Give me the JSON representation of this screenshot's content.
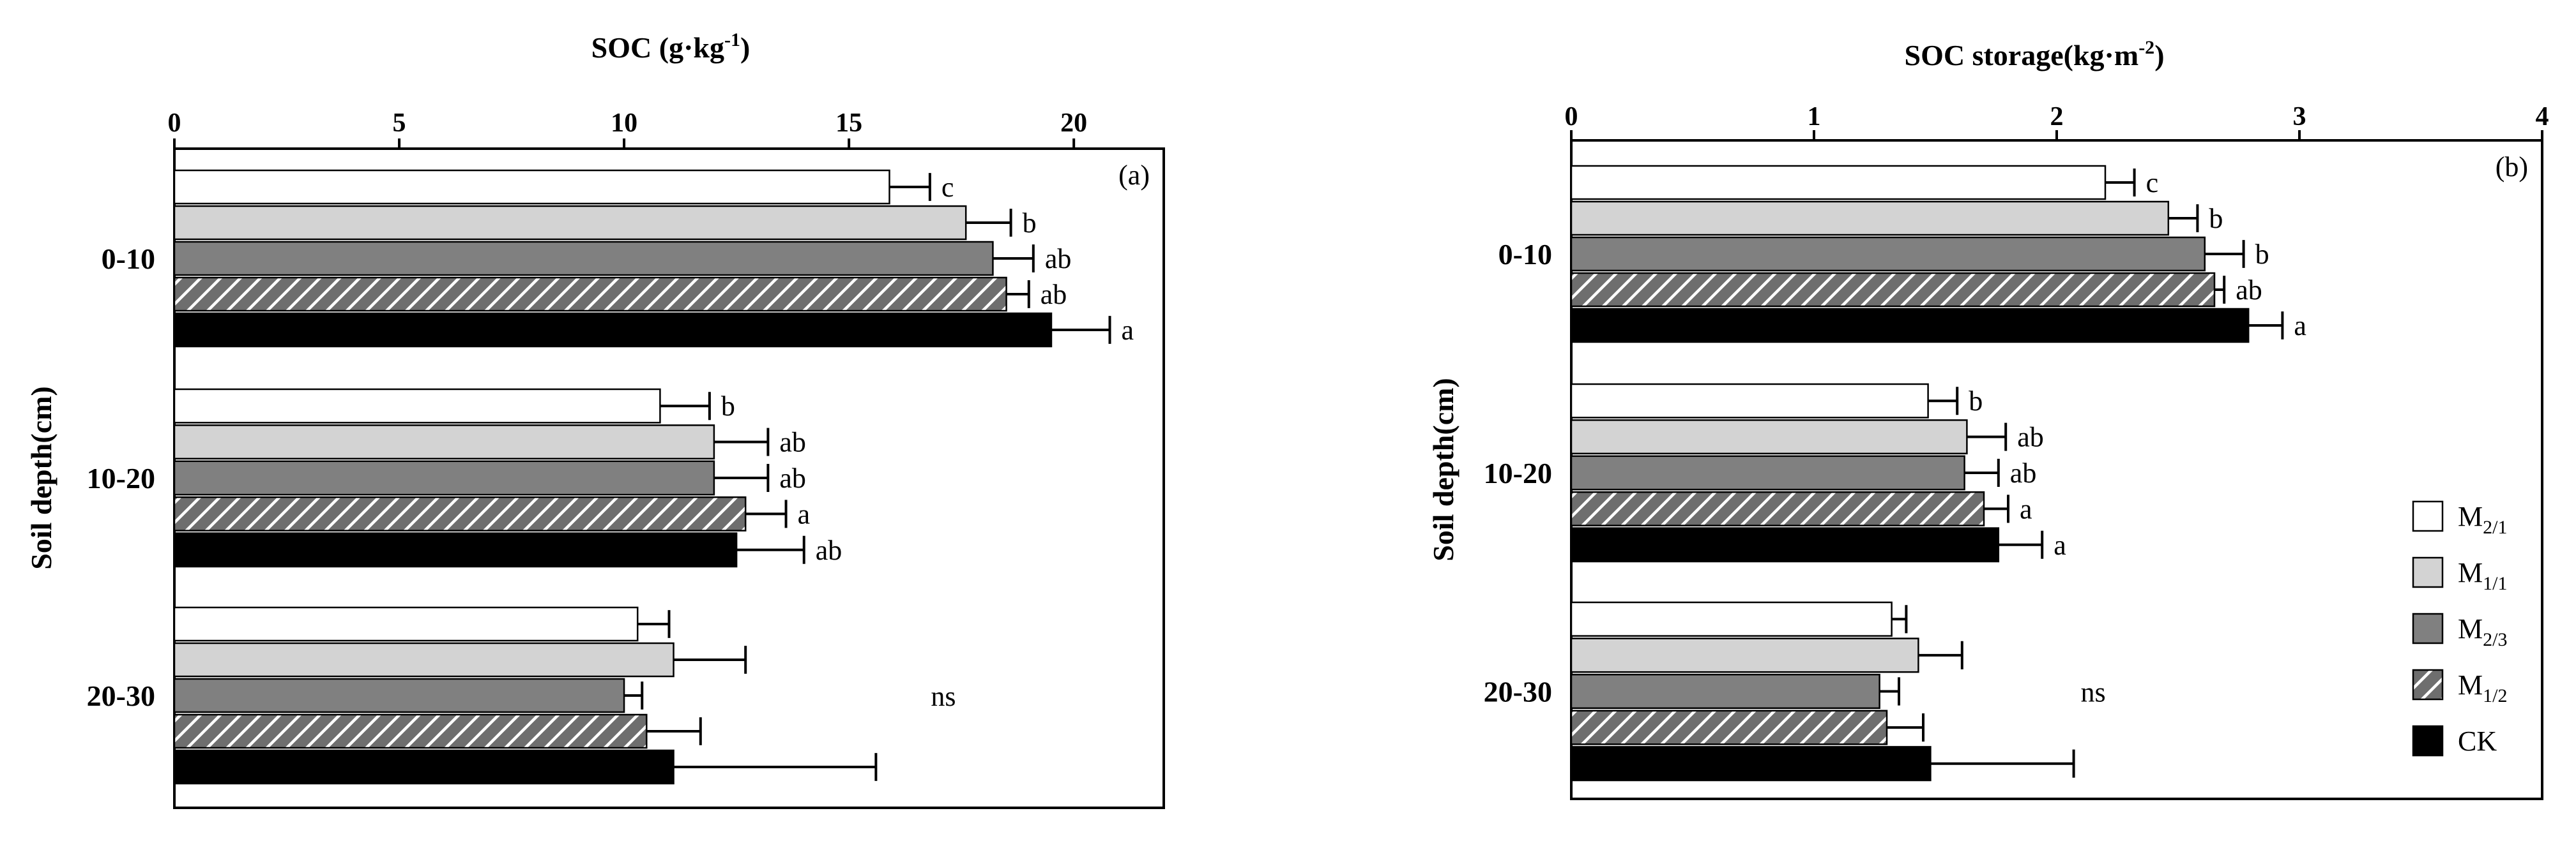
{
  "chart_data": [
    {
      "type": "bar",
      "orientation": "horizontal",
      "panel_label": "(a)",
      "title": "SOC (g·kg",
      "title_sup": "-1",
      "title_close": ")",
      "ylabel": "Soil depth(cm)",
      "xlim": [
        0,
        22
      ],
      "ticks": [
        0,
        5,
        10,
        15,
        20
      ],
      "tick_labels": [
        "0",
        "5",
        "10",
        "15",
        "20"
      ],
      "categories": [
        "0-10",
        "10-20",
        "20-30"
      ],
      "series": [
        {
          "name": "M2/1",
          "values": [
            15.9,
            10.8,
            10.3
          ],
          "errors": [
            0.9,
            1.1,
            0.7
          ],
          "letters": [
            "c",
            "b",
            ""
          ]
        },
        {
          "name": "M1/1",
          "values": [
            17.6,
            12.0,
            11.1
          ],
          "errors": [
            1.0,
            1.2,
            1.6
          ],
          "letters": [
            "b",
            "ab",
            ""
          ]
        },
        {
          "name": "M2/3",
          "values": [
            18.2,
            12.0,
            10.0
          ],
          "errors": [
            0.9,
            1.2,
            0.4
          ],
          "letters": [
            "ab",
            "ab",
            ""
          ]
        },
        {
          "name": "M1/2",
          "values": [
            18.5,
            12.7,
            10.5
          ],
          "errors": [
            0.5,
            0.9,
            1.2
          ],
          "letters": [
            "ab",
            "a",
            ""
          ]
        },
        {
          "name": "CK",
          "values": [
            19.5,
            12.5,
            11.1
          ],
          "errors": [
            1.3,
            1.5,
            4.5
          ],
          "letters": [
            "a",
            "ab",
            ""
          ]
        }
      ],
      "group_notes": [
        "",
        "",
        "ns"
      ]
    },
    {
      "type": "bar",
      "orientation": "horizontal",
      "panel_label": "(b)",
      "title": "SOC storage(kg·m",
      "title_sup": "-2",
      "title_close": ")",
      "ylabel": "Soil depth(cm)",
      "xlim": [
        0,
        4
      ],
      "ticks": [
        0,
        1,
        2,
        3,
        4
      ],
      "tick_labels": [
        "0",
        "1",
        "2",
        "3",
        "4"
      ],
      "categories": [
        "0-10",
        "10-20",
        "20-30"
      ],
      "series": [
        {
          "name": "M2/1",
          "values": [
            2.2,
            1.47,
            1.32
          ],
          "errors": [
            0.12,
            0.12,
            0.06
          ],
          "letters": [
            "c",
            "b",
            ""
          ]
        },
        {
          "name": "M1/1",
          "values": [
            2.46,
            1.63,
            1.43
          ],
          "errors": [
            0.12,
            0.16,
            0.18
          ],
          "letters": [
            "b",
            "ab",
            ""
          ]
        },
        {
          "name": "M2/3",
          "values": [
            2.61,
            1.62,
            1.27
          ],
          "errors": [
            0.16,
            0.14,
            0.08
          ],
          "letters": [
            "b",
            "ab",
            ""
          ]
        },
        {
          "name": "M1/2",
          "values": [
            2.65,
            1.7,
            1.3
          ],
          "errors": [
            0.04,
            0.1,
            0.15
          ],
          "letters": [
            "ab",
            "a",
            ""
          ]
        },
        {
          "name": "CK",
          "values": [
            2.79,
            1.76,
            1.48
          ],
          "errors": [
            0.14,
            0.18,
            0.59
          ],
          "letters": [
            "a",
            "a",
            ""
          ]
        }
      ],
      "group_notes": [
        "",
        "",
        "ns"
      ]
    }
  ],
  "legend": {
    "placement": "bottom-right",
    "items": [
      {
        "base": "M",
        "sub": "2/1",
        "fill": "white"
      },
      {
        "base": "M",
        "sub": "1/1",
        "fill": "light"
      },
      {
        "base": "M",
        "sub": "2/3",
        "fill": "dark"
      },
      {
        "base": "M",
        "sub": "1/2",
        "fill": "hatch"
      },
      {
        "base": "CK",
        "sub": "",
        "fill": "black"
      }
    ]
  },
  "colors": {
    "white": "#ffffff",
    "light": "#d3d3d3",
    "dark": "#808080",
    "hatch_bg": "#6e6e6e",
    "hatch_line": "#ffffff",
    "black": "#000000",
    "axis": "#000000"
  }
}
